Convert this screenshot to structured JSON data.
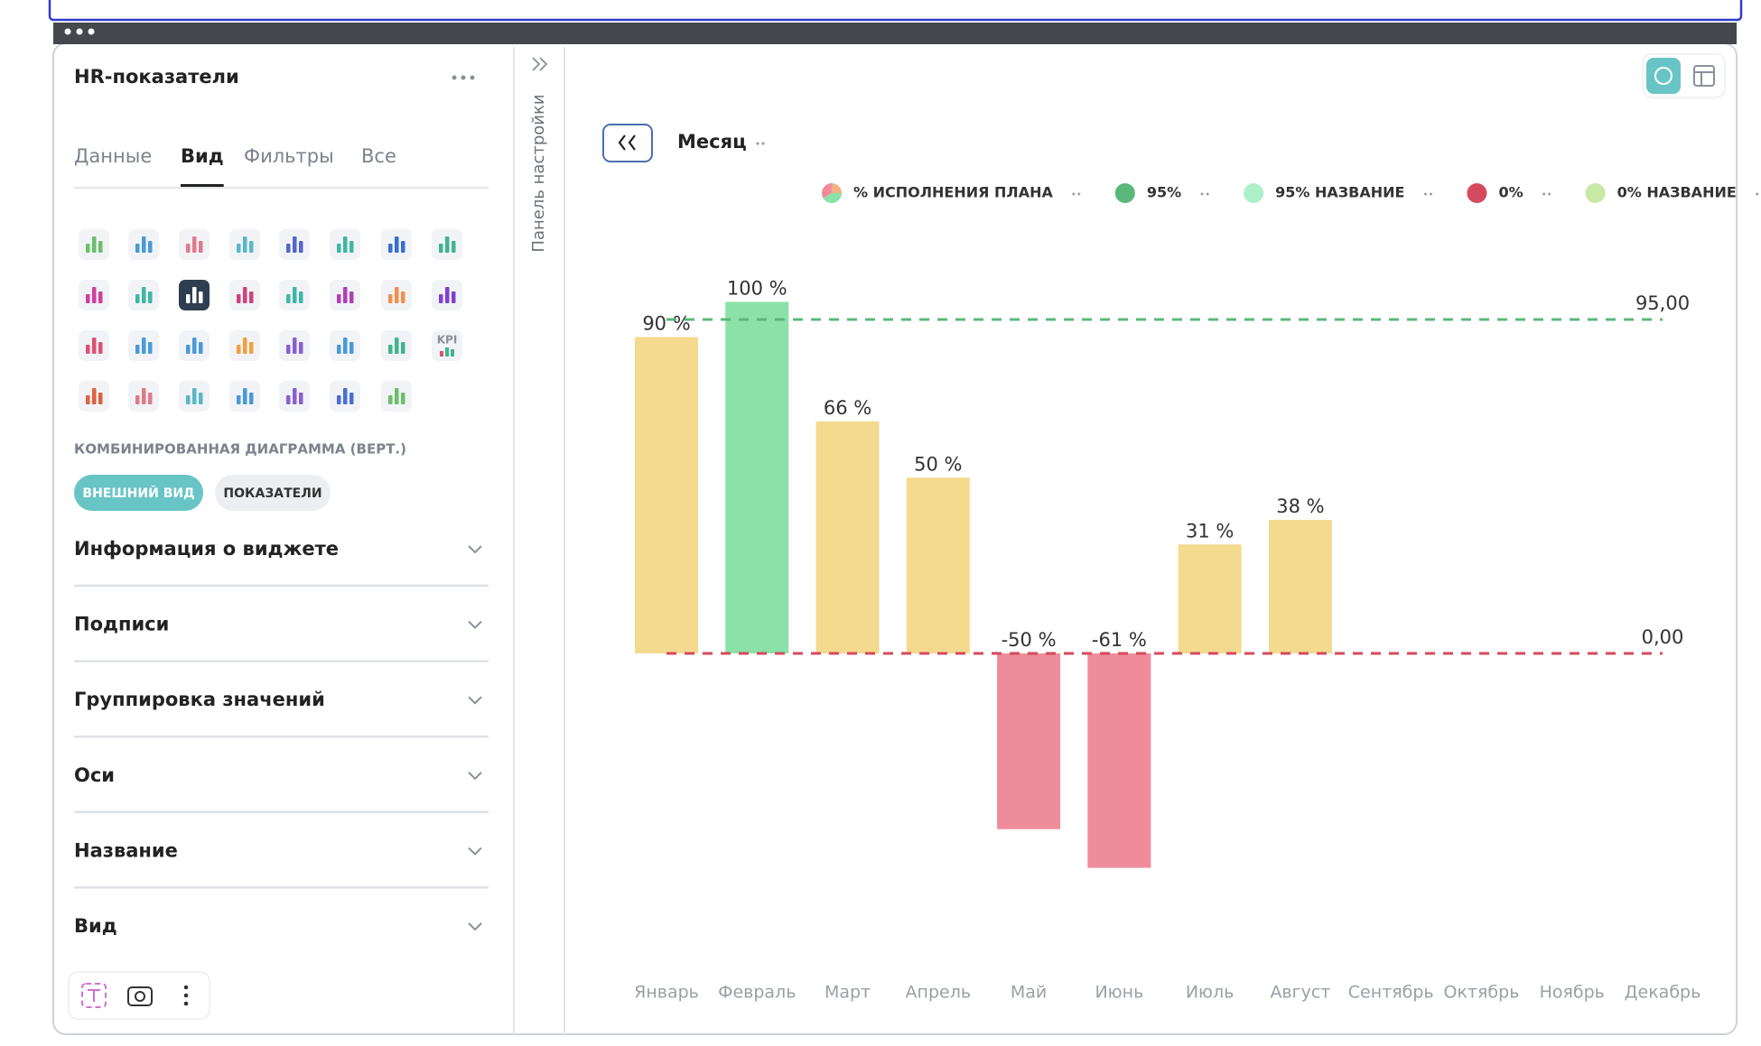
{
  "window": {
    "title": "HR-показатели",
    "side_label": "Панель настройки"
  },
  "tabs": [
    "Данные",
    "Вид",
    "Фильтры",
    "Все"
  ],
  "active_tab": 1,
  "kpi_icon": "KPI",
  "chart_type_label": "КОМБИНИРОВАННАЯ ДИАГРАММА (ВЕРТ.)",
  "mode_buttons": [
    "ВНЕШНИЙ ВИД",
    "ПОКАЗАТЕЛИ"
  ],
  "sections": [
    "Информация о виджете",
    "Подписи",
    "Группировка значений",
    "Оси",
    "Название",
    "Вид"
  ],
  "chart_data": {
    "type": "bar",
    "x_field": "Месяц",
    "categories": [
      "Январь",
      "Февраль",
      "Март",
      "Апрель",
      "Май",
      "Июнь",
      "Июль",
      "Август",
      "Сентябрь",
      "Октябрь",
      "Ноябрь",
      "Декабрь"
    ],
    "series": [
      {
        "name": "% ИСПОЛНЕНИЯ ПЛАНА",
        "values": [
          90,
          100,
          66,
          50,
          -50,
          -61,
          31,
          38,
          null,
          null,
          null,
          null
        ],
        "value_labels": [
          "90 %",
          "100 %",
          "66 %",
          "50 %",
          "-50 %",
          "-61 %",
          "31 %",
          "38 %",
          null,
          null,
          null,
          null
        ],
        "colors": [
          "#f4da8f",
          "#8ae2a8",
          "#f4da8f",
          "#f4da8f",
          "#ef8c9b",
          "#ef8c9b",
          "#f4da8f",
          "#f4da8f",
          null,
          null,
          null,
          null
        ]
      }
    ],
    "legend": [
      {
        "name": "95%",
        "color": "#5cb87a"
      },
      {
        "name": "95% НАЗВАНИЕ",
        "color": "#aef0c8"
      },
      {
        "name": "0%",
        "color": "#d44a5e"
      },
      {
        "name": "0% НАЗВАНИЕ",
        "color": "#c8e8a6"
      }
    ],
    "reference_lines": [
      {
        "value": 95,
        "label": "95,00",
        "color": "#5cb87a"
      },
      {
        "value": 0,
        "label": "0,00",
        "color": "#d44a5e"
      }
    ],
    "ylim": [
      -100,
      120
    ]
  }
}
